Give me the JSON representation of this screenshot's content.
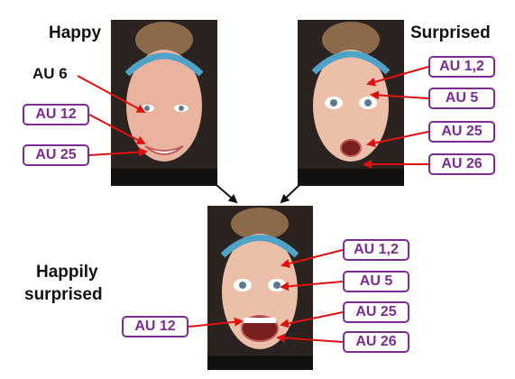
{
  "panels": {
    "happy": {
      "title": "Happy"
    },
    "surprised": {
      "title": "Surprised"
    },
    "happily_surprised": {
      "title_line1": "Happily",
      "title_line2": "surprised"
    }
  },
  "labels": {
    "happy_au6": "AU 6",
    "happy_au12": "AU 12",
    "happy_au25": "AU 25",
    "surprised_au12": "AU 1,2",
    "surprised_au5": "AU 5",
    "surprised_au25": "AU 25",
    "surprised_au26": "AU 26",
    "combined_au12_left": "AU 12",
    "combined_au12": "AU 1,2",
    "combined_au5": "AU 5",
    "combined_au25": "AU 25",
    "combined_au26": "AU 26"
  },
  "colors": {
    "box_border": "#7a2d8f",
    "box_text": "#7a2d8f",
    "arrow_red": "#e01010",
    "arrow_black": "#111111"
  }
}
